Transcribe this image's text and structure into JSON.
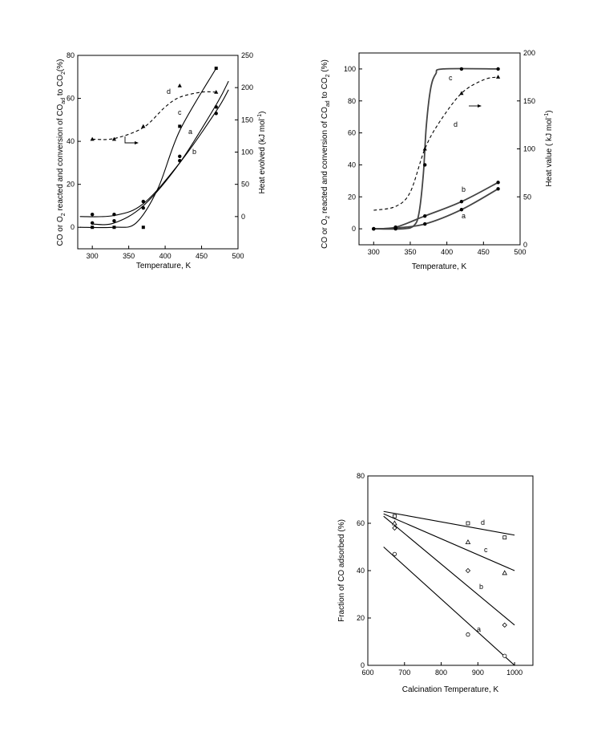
{
  "chart_data": [
    {
      "type": "line",
      "xlabel": "Temperature, K",
      "ylabel_left": "CO or O2 reacted and conversion of COad to CO2 (%)",
      "ylabel_right": "Heat evolved (kJ mol-1)",
      "xlim": [
        280,
        500
      ],
      "ylim_left": [
        -10,
        80
      ],
      "ylim_right": [
        -50,
        250
      ],
      "x_ticks": [
        300,
        350,
        400,
        450,
        500
      ],
      "y_ticks_left": [
        0,
        20,
        40,
        60,
        80
      ],
      "y_ticks_right": [
        0,
        50,
        100,
        150,
        200,
        250
      ],
      "series": [
        {
          "name": "a",
          "marker": "circle",
          "x": [
            300,
            330,
            370,
            420,
            470
          ],
          "y": [
            2,
            3,
            12,
            33,
            56
          ],
          "curve": {
            "x": [
              300,
              330,
              370,
              420,
              470,
              487
            ],
            "y": [
              1.5,
              2,
              10,
              30,
              57,
              68
            ]
          }
        },
        {
          "name": "b",
          "marker": "circle",
          "x": [
            300,
            330,
            370,
            420,
            470
          ],
          "y": [
            6,
            6,
            9,
            31,
            53
          ],
          "curve": {
            "x": [
              283,
              330,
              370,
              420,
              470,
              487
            ],
            "y": [
              5,
              5.5,
              11,
              30,
              54,
              64
            ]
          }
        },
        {
          "name": "c",
          "marker": "square",
          "x": [
            300,
            330,
            370,
            420,
            470
          ],
          "y": [
            0,
            0,
            0,
            47,
            74
          ],
          "curve": {
            "x": [
              283,
              330,
              360,
              390,
              420,
              470
            ],
            "y": [
              0,
              0,
              2,
              18,
              45,
              74
            ]
          }
        },
        {
          "name": "d",
          "marker": "triangle",
          "axis": "right",
          "x": [
            300,
            330,
            370,
            420,
            470
          ],
          "y": [
            120,
            120,
            140,
            203,
            193
          ],
          "curve": {
            "x": [
              300,
              330,
              370,
              400,
              420,
              450,
              470
            ],
            "y": [
              120,
              121,
              138,
              170,
              185,
              193,
              193
            ]
          }
        }
      ],
      "annotations": [
        "a",
        "b",
        "c",
        "d"
      ]
    },
    {
      "type": "line",
      "xlabel": "Temperature, K",
      "ylabel_left": "CO or O2 reacted and conversion of COad to CO2 (%)",
      "ylabel_right": "Heat value ( kJ mol-1)",
      "xlim": [
        280,
        500
      ],
      "ylim_left": [
        -10,
        110
      ],
      "ylim_right": [
        0,
        200
      ],
      "x_ticks": [
        300,
        350,
        400,
        450,
        500
      ],
      "y_ticks_left": [
        0,
        20,
        40,
        60,
        80,
        100
      ],
      "y_ticks_right": [
        0,
        50,
        100,
        150,
        200
      ],
      "series": [
        {
          "name": "a",
          "marker": "circle",
          "x": [
            300,
            330,
            370,
            420,
            470
          ],
          "y": [
            0,
            0.5,
            3,
            12,
            25
          ],
          "curve": {
            "x": [
              300,
              330,
              370,
              420,
              470
            ],
            "y": [
              0,
              0.5,
              3,
              12,
              25
            ]
          }
        },
        {
          "name": "b",
          "marker": "circle",
          "x": [
            300,
            330,
            370,
            420,
            470
          ],
          "y": [
            0,
            1,
            8,
            17,
            29
          ],
          "curve": {
            "x": [
              300,
              330,
              370,
              420,
              470
            ],
            "y": [
              0,
              1,
              8,
              17,
              29
            ]
          }
        },
        {
          "name": "c",
          "marker": "circle",
          "x": [
            300,
            330,
            370,
            420,
            470
          ],
          "y": [
            0,
            0,
            40,
            100,
            100
          ],
          "curve": {
            "x": [
              300,
              340,
              355,
              362,
              368,
              372,
              378,
              385,
              395,
              470
            ],
            "y": [
              0,
              0,
              2,
              10,
              35,
              65,
              88,
              97,
              100,
              100
            ]
          }
        },
        {
          "name": "d",
          "marker": "triangle",
          "axis": "right",
          "x": [
            370,
            420,
            470
          ],
          "y": [
            100,
            158,
            175
          ],
          "curve": {
            "x": [
              300,
              330,
              350,
              370,
              390,
              420,
              450,
              470
            ],
            "y": [
              36,
              40,
              55,
              100,
              128,
              158,
              172,
              175
            ]
          }
        }
      ],
      "annotations": [
        "a",
        "b",
        "c",
        "d"
      ]
    },
    {
      "type": "scatter",
      "xlabel": "Calcination  Temperature, K",
      "ylabel": "Fraction  of  CO  adsorbed (%)",
      "xlim": [
        600,
        1050
      ],
      "ylim": [
        0,
        80
      ],
      "x_ticks": [
        600,
        700,
        800,
        900,
        1000
      ],
      "y_ticks": [
        0,
        20,
        40,
        60,
        80
      ],
      "series": [
        {
          "name": "a",
          "marker": "circle-open",
          "x": [
            673,
            873,
            973
          ],
          "y": [
            47,
            13,
            4
          ],
          "fit": {
            "x": [
              643,
              1000
            ],
            "y": [
              50,
              0
            ]
          }
        },
        {
          "name": "b",
          "marker": "diamond-open",
          "x": [
            673,
            873,
            973
          ],
          "y": [
            58,
            40,
            17
          ],
          "fit": {
            "x": [
              643,
              1000
            ],
            "y": [
              63,
              17
            ]
          }
        },
        {
          "name": "c",
          "marker": "triangle-open",
          "x": [
            673,
            873,
            973
          ],
          "y": [
            60,
            52,
            39
          ],
          "fit": {
            "x": [
              643,
              1000
            ],
            "y": [
              64,
              40
            ]
          }
        },
        {
          "name": "d",
          "marker": "square-open",
          "x": [
            673,
            873,
            973
          ],
          "y": [
            63,
            60,
            54
          ],
          "fit": {
            "x": [
              643,
              1000
            ],
            "y": [
              65,
              55
            ]
          }
        }
      ],
      "annotations": [
        "a",
        "b",
        "c",
        "d"
      ]
    }
  ]
}
